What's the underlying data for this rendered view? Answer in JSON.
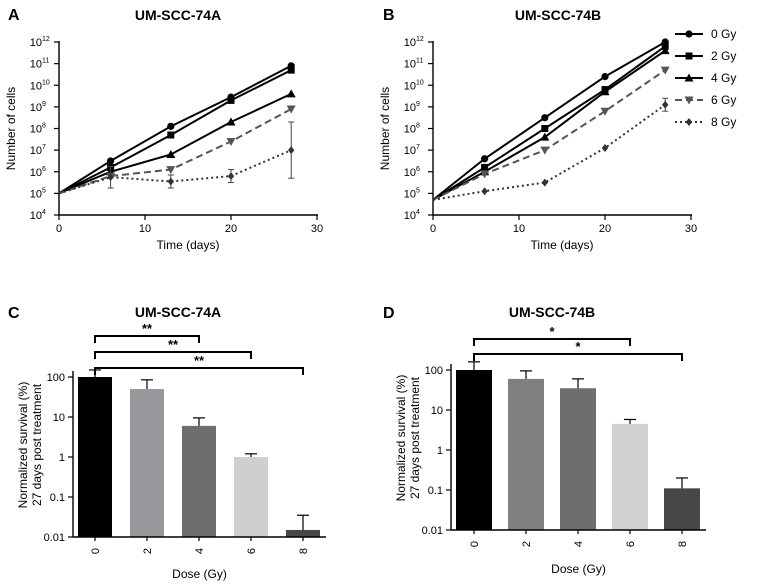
{
  "panel_letters": [
    "A",
    "B",
    "C",
    "D"
  ],
  "legend": [
    {
      "label": "0 Gy",
      "color": "#000000",
      "dash": "",
      "marker": "circle"
    },
    {
      "label": "2 Gy",
      "color": "#000000",
      "dash": "",
      "marker": "square"
    },
    {
      "label": "4 Gy",
      "color": "#000000",
      "dash": "",
      "marker": "triangle-up"
    },
    {
      "label": "6 Gy",
      "color": "#555555",
      "dash": "7,4",
      "marker": "triangle-down"
    },
    {
      "label": "8 Gy",
      "color": "#333333",
      "dash": "2,3",
      "marker": "diamond"
    }
  ],
  "chart_data": [
    {
      "id": "A",
      "type": "line",
      "title": "UM-SCC-74A",
      "xlabel": "Time (days)",
      "ylabel": "Number of cells",
      "xlim": [
        0,
        30
      ],
      "xticks": [
        0,
        10,
        20,
        30
      ],
      "ylim_log10": [
        4,
        12
      ],
      "y_scale": "log",
      "yticks_base": "10",
      "yticks_exp": [
        4,
        5,
        6,
        7,
        8,
        9,
        10,
        11,
        12
      ],
      "x": [
        0,
        6,
        13,
        20,
        27
      ],
      "series": [
        {
          "name": "0 Gy",
          "log10_values": [
            5.0,
            6.5,
            8.1,
            9.45,
            10.9
          ],
          "err_log10": [
            0,
            0,
            0,
            0,
            0
          ]
        },
        {
          "name": "2 Gy",
          "log10_values": [
            5.0,
            6.2,
            7.7,
            9.3,
            10.7
          ],
          "err_log10": [
            0,
            0,
            0,
            0,
            0
          ]
        },
        {
          "name": "4 Gy",
          "log10_values": [
            5.0,
            6.0,
            6.8,
            8.3,
            9.6
          ],
          "err_log10": [
            0,
            0,
            0,
            0,
            0
          ]
        },
        {
          "name": "6 Gy",
          "log10_values": [
            5.0,
            5.8,
            6.1,
            7.4,
            8.9
          ],
          "err_log10": [
            0,
            0,
            0,
            0,
            0
          ]
        },
        {
          "name": "8 Gy",
          "log10_values": [
            5.0,
            5.75,
            5.55,
            5.8,
            7.0
          ],
          "err_log10": [
            0,
            0.5,
            0.3,
            0.3,
            1.3
          ]
        }
      ]
    },
    {
      "id": "B",
      "type": "line",
      "title": "UM-SCC-74B",
      "xlabel": "Time (days)",
      "ylabel": "Number of cells",
      "xlim": [
        0,
        30
      ],
      "xticks": [
        0,
        10,
        20,
        30
      ],
      "ylim_log10": [
        4,
        12
      ],
      "y_scale": "log",
      "yticks_base": "10",
      "yticks_exp": [
        4,
        5,
        6,
        7,
        8,
        9,
        10,
        11,
        12
      ],
      "x": [
        0,
        6,
        13,
        20,
        27
      ],
      "series": [
        {
          "name": "0 Gy",
          "log10_values": [
            4.7,
            6.6,
            8.5,
            10.4,
            12.0
          ],
          "err_log10": [
            0,
            0,
            0,
            0,
            0
          ]
        },
        {
          "name": "2 Gy",
          "log10_values": [
            4.7,
            6.2,
            8.0,
            9.8,
            11.8
          ],
          "err_log10": [
            0,
            0,
            0,
            0,
            0
          ]
        },
        {
          "name": "4 Gy",
          "log10_values": [
            4.7,
            6.0,
            7.6,
            9.7,
            11.6
          ],
          "err_log10": [
            0,
            0,
            0,
            0,
            0
          ]
        },
        {
          "name": "6 Gy",
          "log10_values": [
            4.7,
            5.9,
            7.0,
            8.8,
            10.7
          ],
          "err_log10": [
            0,
            0,
            0,
            0,
            0
          ]
        },
        {
          "name": "8 Gy",
          "log10_values": [
            4.7,
            5.1,
            5.5,
            7.1,
            9.1
          ],
          "err_log10": [
            0,
            0,
            0,
            0,
            0.3
          ]
        }
      ]
    },
    {
      "id": "C",
      "type": "bar",
      "title": "UM-SCC-74A",
      "xlabel": "Dose (Gy)",
      "ylabel_lines": [
        "Normalized survival (%)",
        "27 days post treatment"
      ],
      "y_scale": "log",
      "ylim": [
        0.01,
        100
      ],
      "ytick_labels": [
        "0.01",
        "0.1",
        "1",
        "10",
        "100"
      ],
      "ytick_values": [
        0.01,
        0.1,
        1,
        10,
        100
      ],
      "categories": [
        "0",
        "2",
        "4",
        "6",
        "8"
      ],
      "values": [
        100,
        50,
        6,
        1,
        0.015
      ],
      "err": [
        150,
        85,
        9.5,
        1.2,
        0.035
      ],
      "bar_colors": [
        "#000000",
        "#98989c",
        "#6e6e6e",
        "#cfcfcf",
        "#474747"
      ],
      "significance": [
        {
          "from": "0",
          "to": "4",
          "label": "**"
        },
        {
          "from": "0",
          "to": "6",
          "label": "**"
        },
        {
          "from": "0",
          "to": "8",
          "label": "**"
        }
      ]
    },
    {
      "id": "D",
      "type": "bar",
      "title": "UM-SCC-74B",
      "xlabel": "Dose (Gy)",
      "ylabel_lines": [
        "Normalized survival (%)",
        "27 days post treatment"
      ],
      "y_scale": "log",
      "ylim": [
        0.01,
        100
      ],
      "ytick_labels": [
        "0.01",
        "0.1",
        "1",
        "10",
        "100"
      ],
      "ytick_values": [
        0.01,
        0.1,
        1,
        10,
        100
      ],
      "categories": [
        "0",
        "2",
        "4",
        "6",
        "8"
      ],
      "values": [
        100,
        60,
        35,
        4.5,
        0.11
      ],
      "err": [
        160,
        95,
        60,
        5.8,
        0.2
      ],
      "bar_colors": [
        "#000000",
        "#808080",
        "#6e6e6e",
        "#d0d0d0",
        "#474747"
      ],
      "significance": [
        {
          "from": "0",
          "to": "6",
          "label": "*"
        },
        {
          "from": "0",
          "to": "8",
          "label": "*"
        }
      ]
    }
  ]
}
